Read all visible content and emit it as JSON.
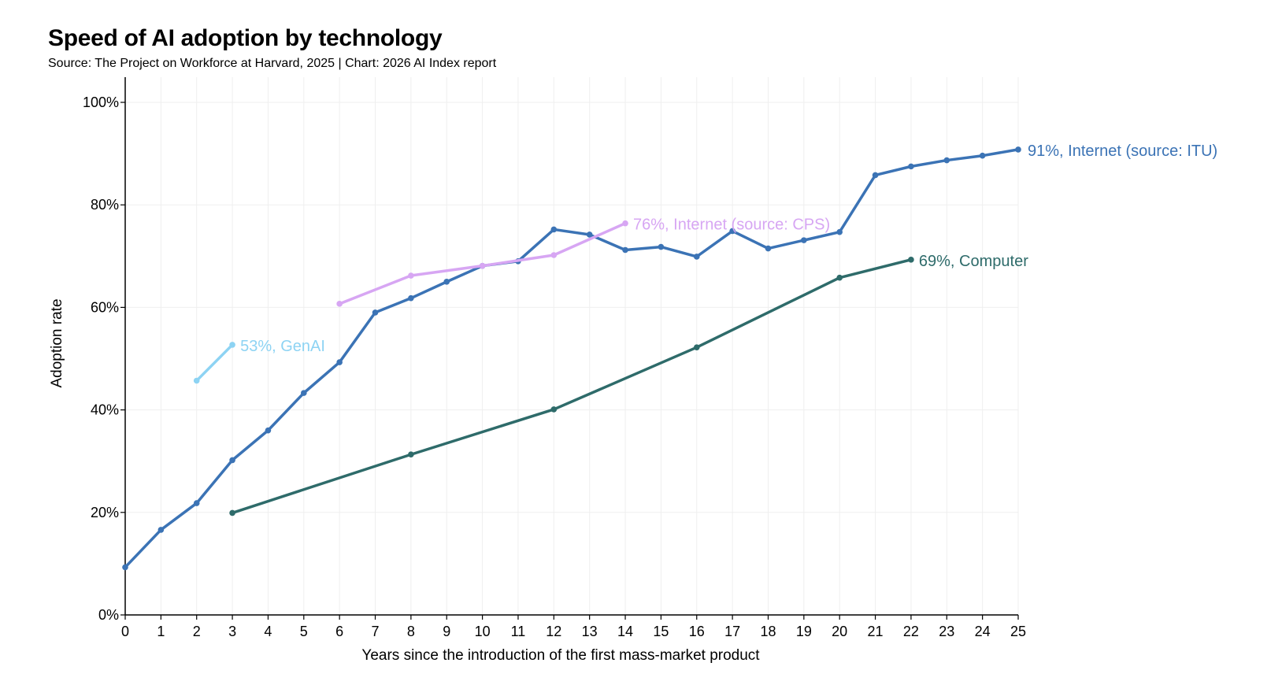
{
  "title": "Speed of AI adoption by technology",
  "subtitle": "Source: The Project on Workforce at Harvard, 2025 | Chart: 2026 AI Index report",
  "chart_data": {
    "type": "line",
    "title": "Speed of AI adoption by technology",
    "subtitle": "Source: The Project on Workforce at Harvard, 2025 | Chart: 2026 AI Index report",
    "xlabel": "Years since the introduction of the first mass-market product",
    "ylabel": "Adoption rate",
    "xlim": [
      0,
      25
    ],
    "ylim": [
      0,
      100
    ],
    "x_ticks": [
      "0",
      "1",
      "2",
      "3",
      "4",
      "5",
      "6",
      "7",
      "8",
      "9",
      "10",
      "11",
      "12",
      "13",
      "14",
      "15",
      "16",
      "17",
      "18",
      "19",
      "20",
      "21",
      "22",
      "23",
      "24",
      "25"
    ],
    "x_tick_values": [
      0,
      1,
      2,
      3,
      4,
      5,
      6,
      7,
      8,
      9,
      10,
      11,
      12,
      13,
      14,
      15,
      16,
      17,
      18,
      19,
      20,
      21,
      22,
      23,
      24,
      25
    ],
    "y_ticks": [
      "0%",
      "20%",
      "40%",
      "60%",
      "80%",
      "100%"
    ],
    "y_tick_values": [
      0,
      20,
      40,
      60,
      80,
      100
    ],
    "grid": true,
    "legend": "direct labels at line ends",
    "series": [
      {
        "label": "91%, Internet (source: ITU)",
        "color": "#3b73b5",
        "x": [
          0,
          1,
          2,
          3,
          4,
          5,
          6,
          7,
          8,
          9,
          10,
          11,
          12,
          13,
          14,
          15,
          16,
          17,
          18,
          19,
          20,
          21,
          22,
          23,
          24,
          25
        ],
        "y": [
          9.3,
          16.6,
          21.8,
          30.2,
          36.0,
          43.3,
          49.3,
          59.0,
          61.8,
          65.0,
          68.1,
          69.0,
          75.2,
          74.2,
          71.2,
          71.8,
          69.9,
          74.9,
          71.5,
          73.1,
          74.7,
          85.8,
          87.5,
          88.7,
          89.6,
          90.8
        ]
      },
      {
        "label": "76%, Internet (source: CPS)",
        "color": "#d7a6f3",
        "x": [
          6,
          8,
          10,
          12,
          14
        ],
        "y": [
          60.7,
          66.2,
          68.1,
          70.2,
          76.4
        ]
      },
      {
        "label": "69%, Computer",
        "color": "#2e6b6a",
        "x": [
          3,
          8,
          12,
          16,
          20,
          22
        ],
        "y": [
          19.9,
          31.3,
          40.1,
          52.2,
          65.8,
          69.3
        ]
      },
      {
        "label": "53%, GenAI",
        "color": "#8dd3f3",
        "x": [
          2,
          3
        ],
        "y": [
          45.7,
          52.7
        ]
      }
    ]
  }
}
